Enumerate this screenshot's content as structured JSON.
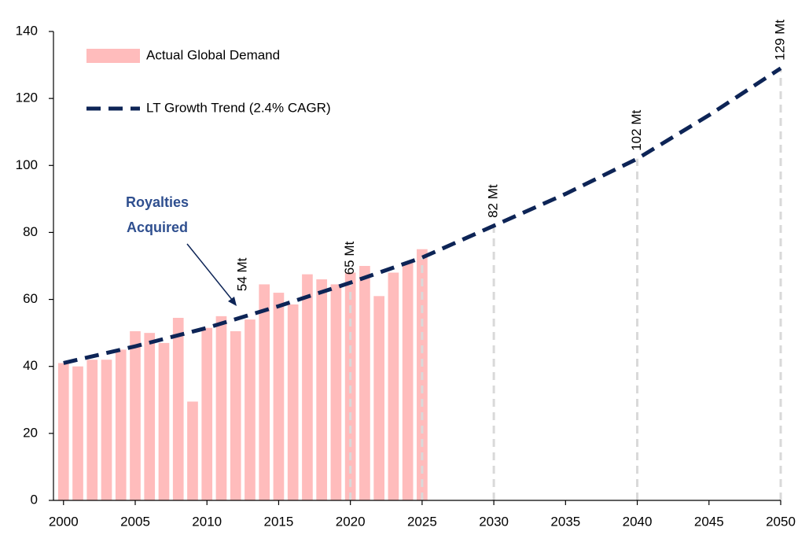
{
  "chart_data": {
    "type": "bar_line",
    "xlim": [
      1999.3,
      2050
    ],
    "xticks": [
      2000,
      2005,
      2010,
      2015,
      2020,
      2025,
      2030,
      2035,
      2040,
      2045,
      2050
    ],
    "ylim": [
      0,
      140
    ],
    "yticks": [
      0,
      20,
      40,
      60,
      80,
      100,
      120,
      140
    ],
    "bars": {
      "name": "Actual Global Demand",
      "color": "#ffbcbc",
      "x": [
        2000,
        2001,
        2002,
        2003,
        2004,
        2005,
        2006,
        2007,
        2008,
        2009,
        2010,
        2011,
        2012,
        2013,
        2014,
        2015,
        2016,
        2017,
        2018,
        2019,
        2020,
        2021,
        2022,
        2023,
        2024,
        2025
      ],
      "values": [
        41,
        40,
        42,
        42,
        45,
        50.5,
        50,
        47,
        54.5,
        29.5,
        51.5,
        55,
        50.5,
        54,
        64.5,
        62,
        58.5,
        67.5,
        66,
        64.5,
        68,
        70,
        61,
        68,
        71,
        75
      ]
    },
    "line": {
      "name": "LT Growth Trend (2.4% CAGR)",
      "color": "#0d2456",
      "x": [
        2000,
        2005,
        2010,
        2015,
        2020,
        2025,
        2030,
        2035,
        2040,
        2045,
        2050
      ],
      "values": [
        41,
        46,
        51.5,
        58,
        65,
        72.5,
        82,
        91.5,
        102,
        115,
        129
      ]
    },
    "markers": [
      {
        "x": 2020,
        "value": 65,
        "label": "65 Mt"
      },
      {
        "x": 2025,
        "value": 72.5
      },
      {
        "x": 2030,
        "value": 82,
        "label": "82 Mt"
      },
      {
        "x": 2040,
        "value": 102,
        "label": "102 Mt"
      },
      {
        "x": 2050,
        "value": 129,
        "label": "129 Mt"
      }
    ],
    "annotation": {
      "text": "54 Mt",
      "x": 2012.5,
      "y": 54
    },
    "callout": [
      "Royalties",
      "Acquired"
    ]
  }
}
